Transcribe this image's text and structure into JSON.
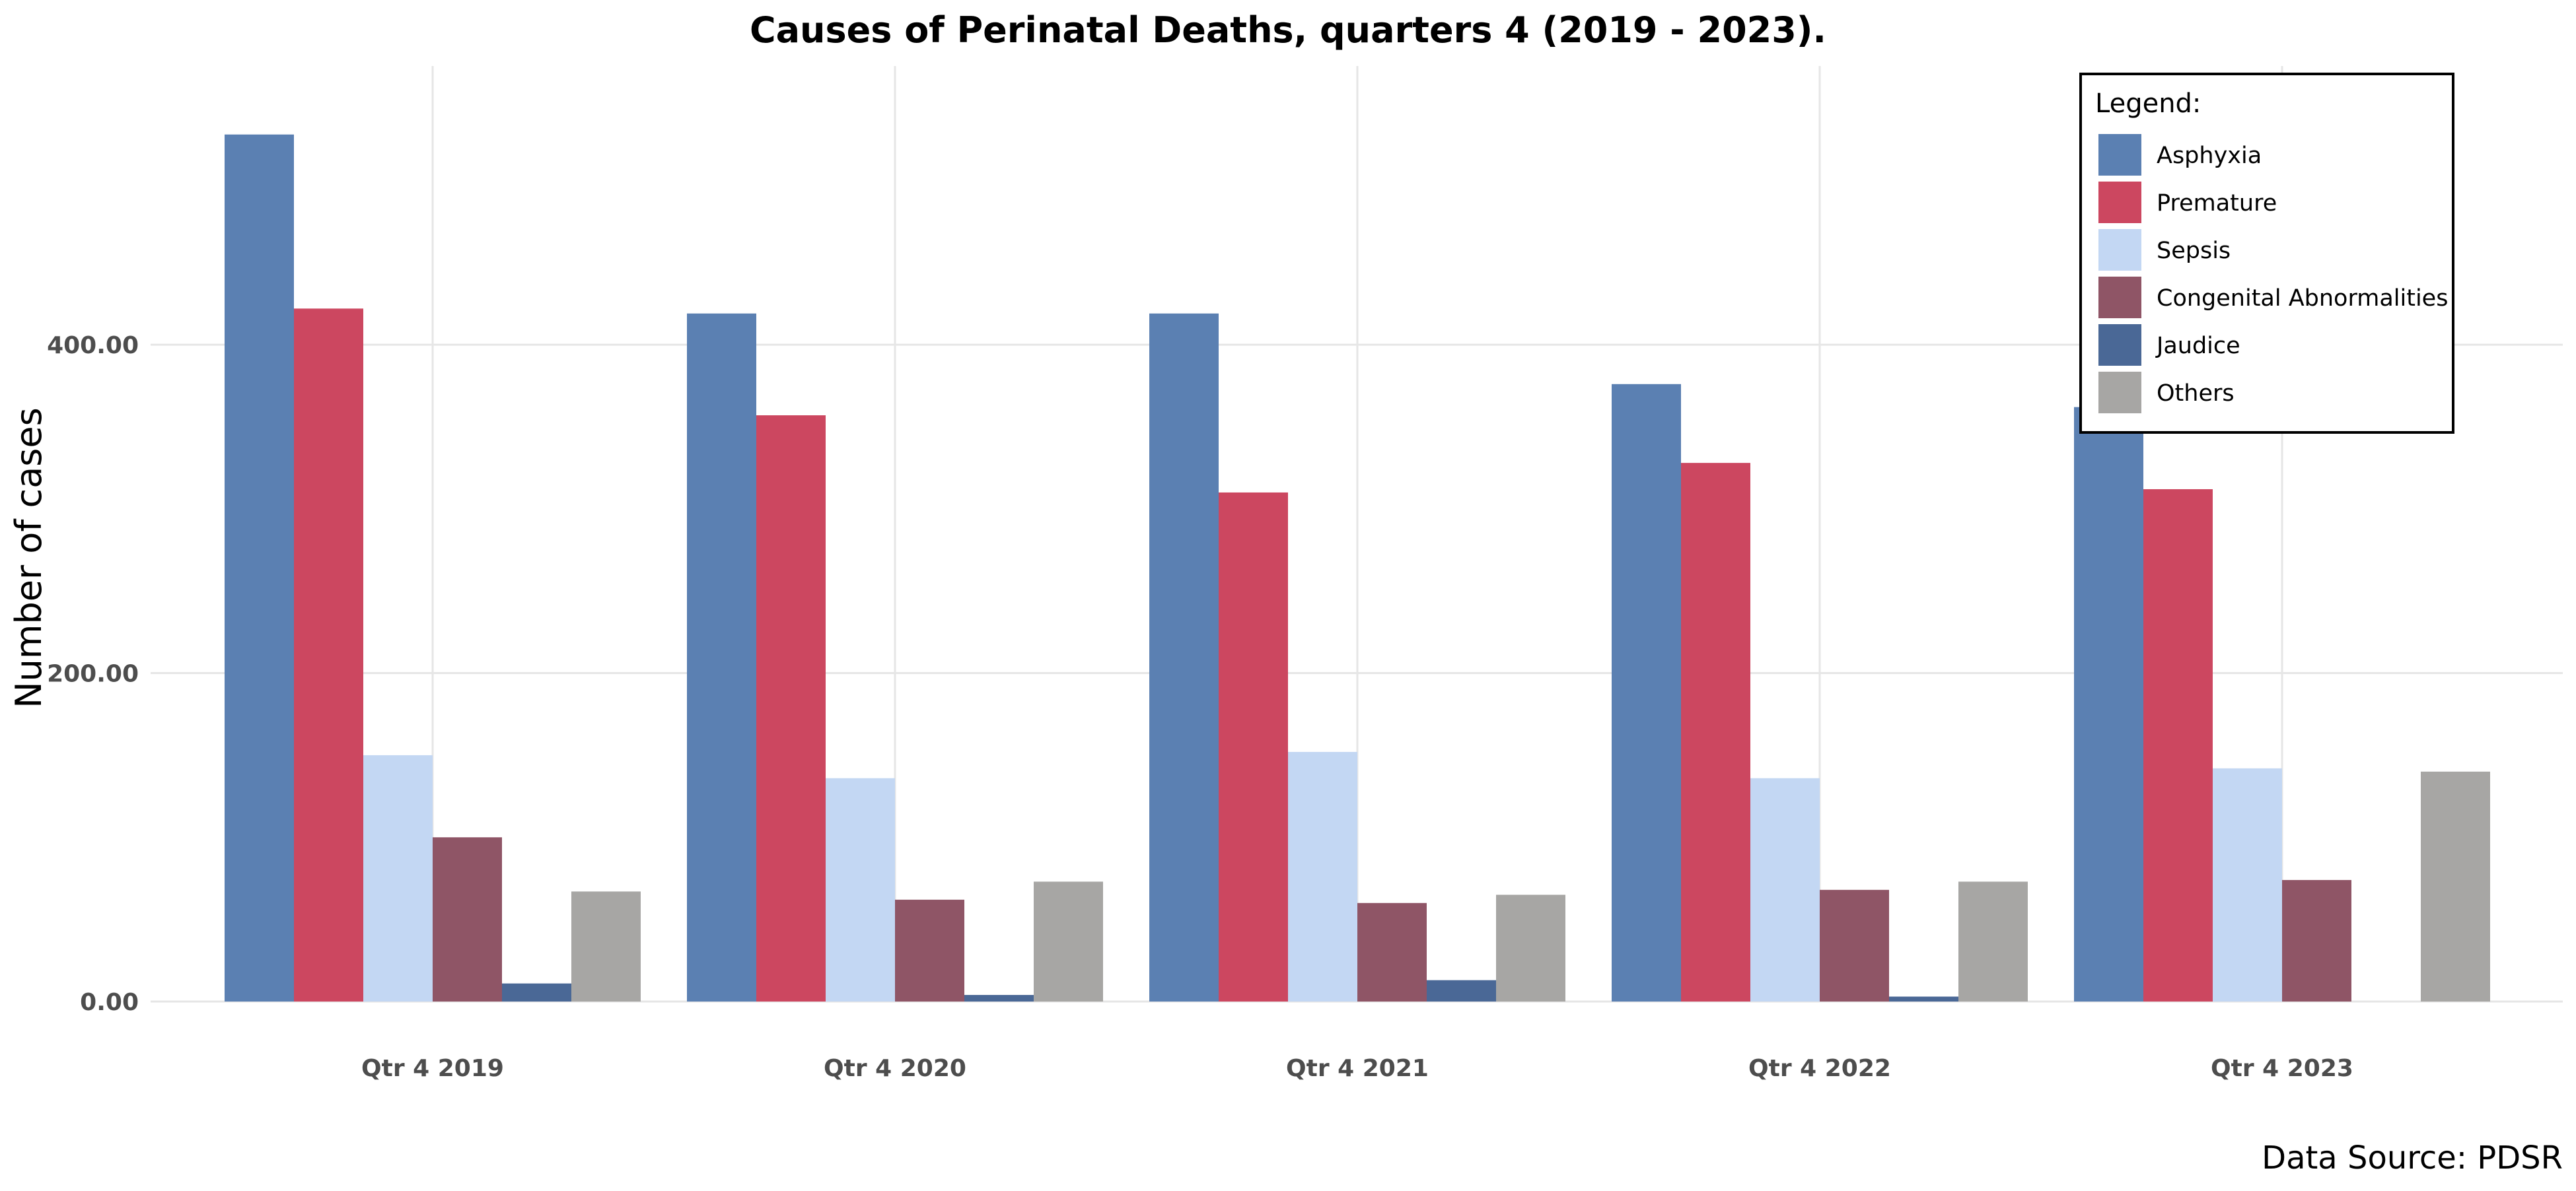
{
  "chart_data": {
    "type": "bar",
    "title": "Causes of Perinatal Deaths, quarters 4 (2019 - 2023).",
    "xlabel": "",
    "ylabel": "Number of cases",
    "caption": "Data Source: PDSR",
    "categories": [
      "Qtr 4 2019",
      "Qtr 4 2020",
      "Qtr 4 2021",
      "Qtr 4 2022",
      "Qtr 4 2023"
    ],
    "y_ticks": [
      0,
      200,
      400
    ],
    "y_tick_labels": [
      "0.00",
      "200.00",
      "400.00"
    ],
    "ylim": [
      0,
      550
    ],
    "grid": true,
    "legend": {
      "title": "Legend:",
      "placement": "top-right"
    },
    "series": [
      {
        "name": "Asphyxia",
        "color": "#5b80b2",
        "values": [
          528,
          419,
          419,
          376,
          362
        ]
      },
      {
        "name": "Premature",
        "color": "#cc4760",
        "values": [
          422,
          357,
          310,
          328,
          312
        ]
      },
      {
        "name": "Sepsis",
        "color": "#c3d7f3",
        "values": [
          150,
          136,
          152,
          136,
          142
        ]
      },
      {
        "name": "Congenital Abnormalities",
        "color": "#8f5566",
        "values": [
          100,
          62,
          60,
          68,
          74
        ]
      },
      {
        "name": "Jaudice",
        "color": "#4a6896",
        "values": [
          11,
          4,
          13,
          3,
          0
        ]
      },
      {
        "name": "Others",
        "color": "#a7a6a4",
        "values": [
          67,
          73,
          65,
          73,
          140
        ]
      }
    ]
  }
}
